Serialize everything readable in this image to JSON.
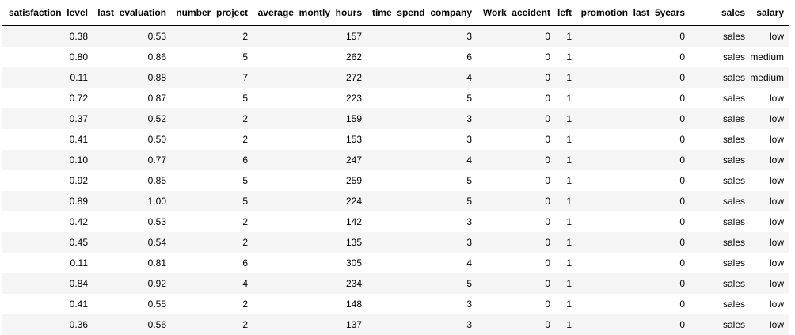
{
  "table": {
    "columns": [
      "satisfaction_level",
      "last_evaluation",
      "number_project",
      "average_montly_hours",
      "time_spend_company",
      "Work_accident",
      "left",
      "promotion_last_5years",
      "sales",
      "salary"
    ],
    "rows": [
      [
        "0.38",
        "0.53",
        "2",
        "157",
        "3",
        "0",
        "1",
        "0",
        "sales",
        "low"
      ],
      [
        "0.80",
        "0.86",
        "5",
        "262",
        "6",
        "0",
        "1",
        "0",
        "sales",
        "medium"
      ],
      [
        "0.11",
        "0.88",
        "7",
        "272",
        "4",
        "0",
        "1",
        "0",
        "sales",
        "medium"
      ],
      [
        "0.72",
        "0.87",
        "5",
        "223",
        "5",
        "0",
        "1",
        "0",
        "sales",
        "low"
      ],
      [
        "0.37",
        "0.52",
        "2",
        "159",
        "3",
        "0",
        "1",
        "0",
        "sales",
        "low"
      ],
      [
        "0.41",
        "0.50",
        "2",
        "153",
        "3",
        "0",
        "1",
        "0",
        "sales",
        "low"
      ],
      [
        "0.10",
        "0.77",
        "6",
        "247",
        "4",
        "0",
        "1",
        "0",
        "sales",
        "low"
      ],
      [
        "0.92",
        "0.85",
        "5",
        "259",
        "5",
        "0",
        "1",
        "0",
        "sales",
        "low"
      ],
      [
        "0.89",
        "1.00",
        "5",
        "224",
        "5",
        "0",
        "1",
        "0",
        "sales",
        "low"
      ],
      [
        "0.42",
        "0.53",
        "2",
        "142",
        "3",
        "0",
        "1",
        "0",
        "sales",
        "low"
      ],
      [
        "0.45",
        "0.54",
        "2",
        "135",
        "3",
        "0",
        "1",
        "0",
        "sales",
        "low"
      ],
      [
        "0.11",
        "0.81",
        "6",
        "305",
        "4",
        "0",
        "1",
        "0",
        "sales",
        "low"
      ],
      [
        "0.84",
        "0.92",
        "4",
        "234",
        "5",
        "0",
        "1",
        "0",
        "sales",
        "low"
      ],
      [
        "0.41",
        "0.55",
        "2",
        "148",
        "3",
        "0",
        "1",
        "0",
        "sales",
        "low"
      ],
      [
        "0.36",
        "0.56",
        "2",
        "137",
        "3",
        "0",
        "1",
        "0",
        "sales",
        "low"
      ]
    ]
  }
}
